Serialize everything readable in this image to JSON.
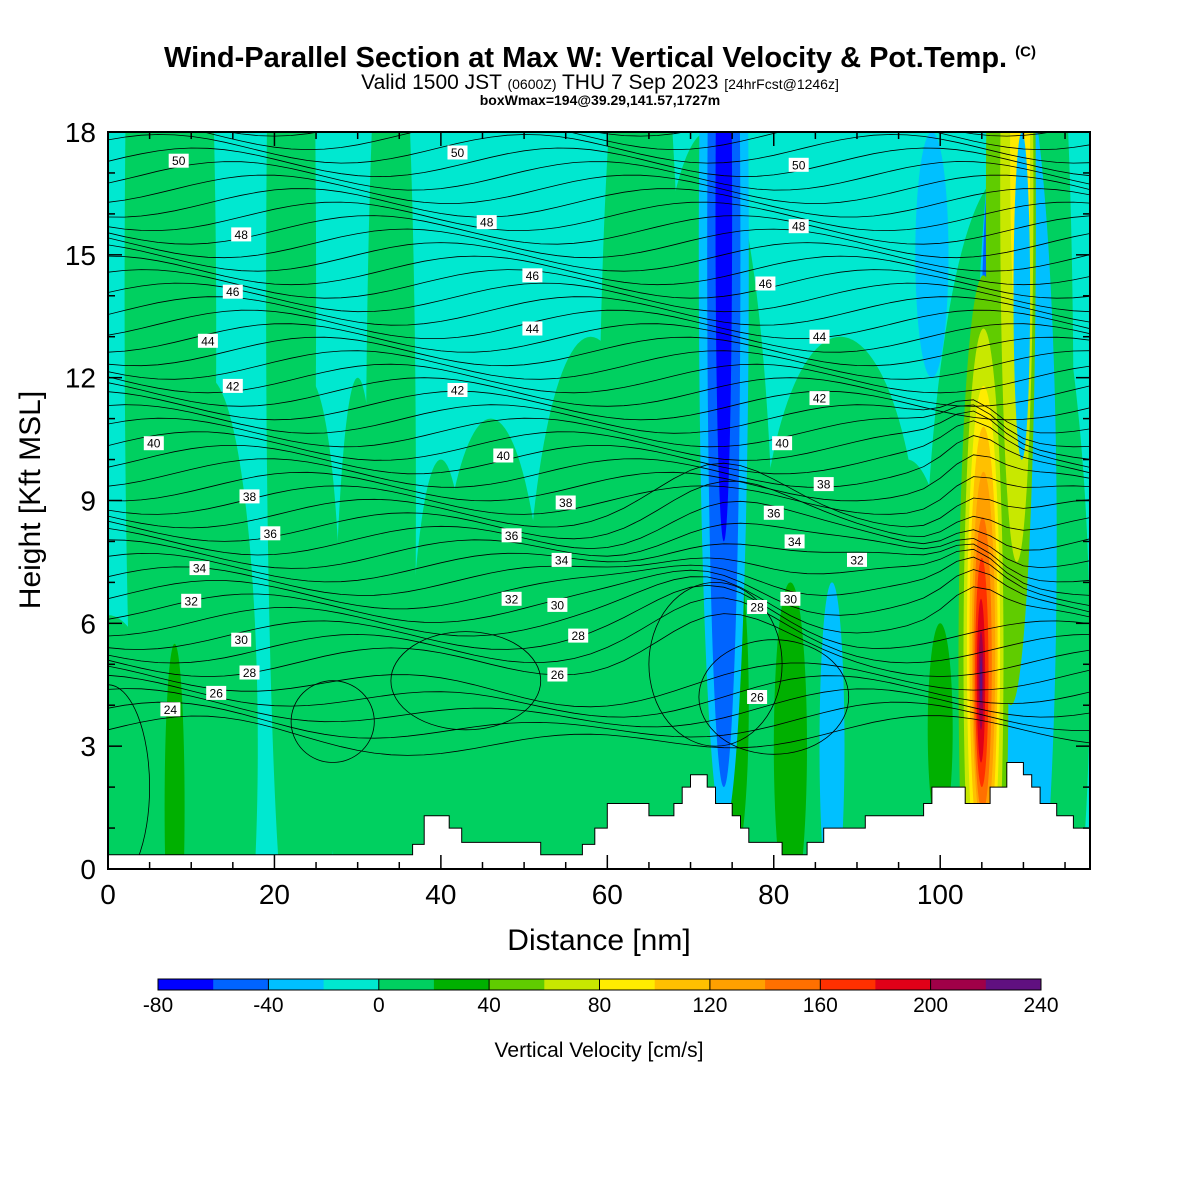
{
  "header": {
    "title": "Wind-Parallel Section at Max W: Vertical Velocity & Pot.Temp.",
    "copyright": "(C)",
    "valid_prefix": "Valid 1500 JST",
    "valid_utc": "(0600Z)",
    "valid_date": "THU 7 Sep 2023",
    "forecast": "[24hrFcst@1246z]",
    "box_info": "boxWmax=194@39.29,141.57,1727m"
  },
  "chart_data": {
    "type": "heatmap",
    "xlabel": "Distance [nm]",
    "ylabel": "Height [Kft MSL]",
    "xlim": [
      0,
      118
    ],
    "ylim": [
      0,
      18
    ],
    "x_ticks": [
      0,
      20,
      40,
      60,
      80,
      100
    ],
    "y_ticks": [
      0,
      3,
      6,
      9,
      12,
      15,
      18
    ],
    "colorbar": {
      "label": "Vertical Velocity [cm/s]",
      "min": -80,
      "max": 240,
      "step": 20,
      "tick_labels": [
        "-80",
        "-40",
        "0",
        "40",
        "80",
        "120",
        "160",
        "200",
        "240"
      ],
      "colors": [
        "#0000ff",
        "#0064ff",
        "#00c0ff",
        "#00e8d0",
        "#00d060",
        "#00b000",
        "#60cc00",
        "#c8e800",
        "#ffec00",
        "#ffc000",
        "#ffa000",
        "#ff7000",
        "#ff3000",
        "#e00018",
        "#a00048",
        "#601080"
      ]
    },
    "contours": {
      "variable": "Potential Temperature",
      "labels": [
        {
          "x": 8.5,
          "y": 17.3,
          "text": "50"
        },
        {
          "x": 42,
          "y": 17.5,
          "text": "50"
        },
        {
          "x": 83,
          "y": 17.2,
          "text": "50"
        },
        {
          "x": 16,
          "y": 15.5,
          "text": "48"
        },
        {
          "x": 45.5,
          "y": 15.8,
          "text": "48"
        },
        {
          "x": 83,
          "y": 15.7,
          "text": "48"
        },
        {
          "x": 15,
          "y": 14.1,
          "text": "46"
        },
        {
          "x": 51,
          "y": 14.5,
          "text": "46"
        },
        {
          "x": 79,
          "y": 14.3,
          "text": "46"
        },
        {
          "x": 12,
          "y": 12.9,
          "text": "44"
        },
        {
          "x": 51,
          "y": 13.2,
          "text": "44"
        },
        {
          "x": 85.5,
          "y": 13.0,
          "text": "44"
        },
        {
          "x": 15,
          "y": 11.8,
          "text": "42"
        },
        {
          "x": 42,
          "y": 11.7,
          "text": "42"
        },
        {
          "x": 85.5,
          "y": 11.5,
          "text": "42"
        },
        {
          "x": 5.5,
          "y": 10.4,
          "text": "40"
        },
        {
          "x": 47.5,
          "y": 10.1,
          "text": "40"
        },
        {
          "x": 81,
          "y": 10.4,
          "text": "40"
        },
        {
          "x": 17,
          "y": 9.1,
          "text": "38"
        },
        {
          "x": 55,
          "y": 8.95,
          "text": "38"
        },
        {
          "x": 86,
          "y": 9.4,
          "text": "38"
        },
        {
          "x": 19.5,
          "y": 8.2,
          "text": "36"
        },
        {
          "x": 48.5,
          "y": 8.15,
          "text": "36"
        },
        {
          "x": 80,
          "y": 8.7,
          "text": "36"
        },
        {
          "x": 11,
          "y": 7.35,
          "text": "34"
        },
        {
          "x": 54.5,
          "y": 7.55,
          "text": "34"
        },
        {
          "x": 82.5,
          "y": 8.0,
          "text": "34"
        },
        {
          "x": 10,
          "y": 6.55,
          "text": "32"
        },
        {
          "x": 48.5,
          "y": 6.6,
          "text": "32"
        },
        {
          "x": 90,
          "y": 7.55,
          "text": "32"
        },
        {
          "x": 16,
          "y": 5.6,
          "text": "30"
        },
        {
          "x": 54,
          "y": 6.45,
          "text": "30"
        },
        {
          "x": 82,
          "y": 6.6,
          "text": "30"
        },
        {
          "x": 17,
          "y": 4.8,
          "text": "28"
        },
        {
          "x": 56.5,
          "y": 5.7,
          "text": "28"
        },
        {
          "x": 78,
          "y": 6.4,
          "text": "28"
        },
        {
          "x": 13,
          "y": 4.3,
          "text": "26"
        },
        {
          "x": 54,
          "y": 4.75,
          "text": "26"
        },
        {
          "x": 78,
          "y": 4.2,
          "text": "26"
        },
        {
          "x": 7.5,
          "y": 3.9,
          "text": "24"
        }
      ]
    },
    "terrain": [
      [
        0,
        0.35
      ],
      [
        36.6,
        0.35
      ],
      [
        36.6,
        0.6
      ],
      [
        38,
        0.6
      ],
      [
        38,
        1.3
      ],
      [
        41,
        1.3
      ],
      [
        41,
        1.0
      ],
      [
        42.5,
        1.0
      ],
      [
        42.5,
        0.65
      ],
      [
        52,
        0.65
      ],
      [
        52,
        0.35
      ],
      [
        57,
        0.35
      ],
      [
        57,
        0.6
      ],
      [
        58.5,
        0.6
      ],
      [
        58.5,
        1.0
      ],
      [
        60,
        1.0
      ],
      [
        60,
        1.6
      ],
      [
        65,
        1.6
      ],
      [
        65,
        1.3
      ],
      [
        68,
        1.3
      ],
      [
        68,
        1.6
      ],
      [
        69,
        1.6
      ],
      [
        69,
        2.0
      ],
      [
        70,
        2.0
      ],
      [
        70,
        2.3
      ],
      [
        72,
        2.3
      ],
      [
        72,
        2.0
      ],
      [
        73,
        2.0
      ],
      [
        73,
        1.6
      ],
      [
        75,
        1.6
      ],
      [
        75,
        1.3
      ],
      [
        76,
        1.3
      ],
      [
        76,
        1.0
      ],
      [
        77,
        1.0
      ],
      [
        77,
        0.65
      ],
      [
        81,
        0.65
      ],
      [
        81,
        0.35
      ],
      [
        84,
        0.35
      ],
      [
        84,
        0.65
      ],
      [
        86,
        0.65
      ],
      [
        86,
        1.0
      ],
      [
        91,
        1.0
      ],
      [
        91,
        1.3
      ],
      [
        98,
        1.3
      ],
      [
        98,
        1.6
      ],
      [
        99,
        1.6
      ],
      [
        99,
        2.0
      ],
      [
        103,
        2.0
      ],
      [
        103,
        1.6
      ],
      [
        106,
        1.6
      ],
      [
        106,
        2.0
      ],
      [
        108,
        2.0
      ],
      [
        108,
        2.6
      ],
      [
        110,
        2.6
      ],
      [
        110,
        2.3
      ],
      [
        111,
        2.3
      ],
      [
        111,
        2.0
      ],
      [
        112,
        2.0
      ],
      [
        112,
        1.6
      ],
      [
        114,
        1.6
      ],
      [
        114,
        1.3
      ],
      [
        116,
        1.3
      ],
      [
        116,
        1.0
      ],
      [
        118,
        1.0
      ],
      [
        118,
        0
      ]
    ]
  }
}
